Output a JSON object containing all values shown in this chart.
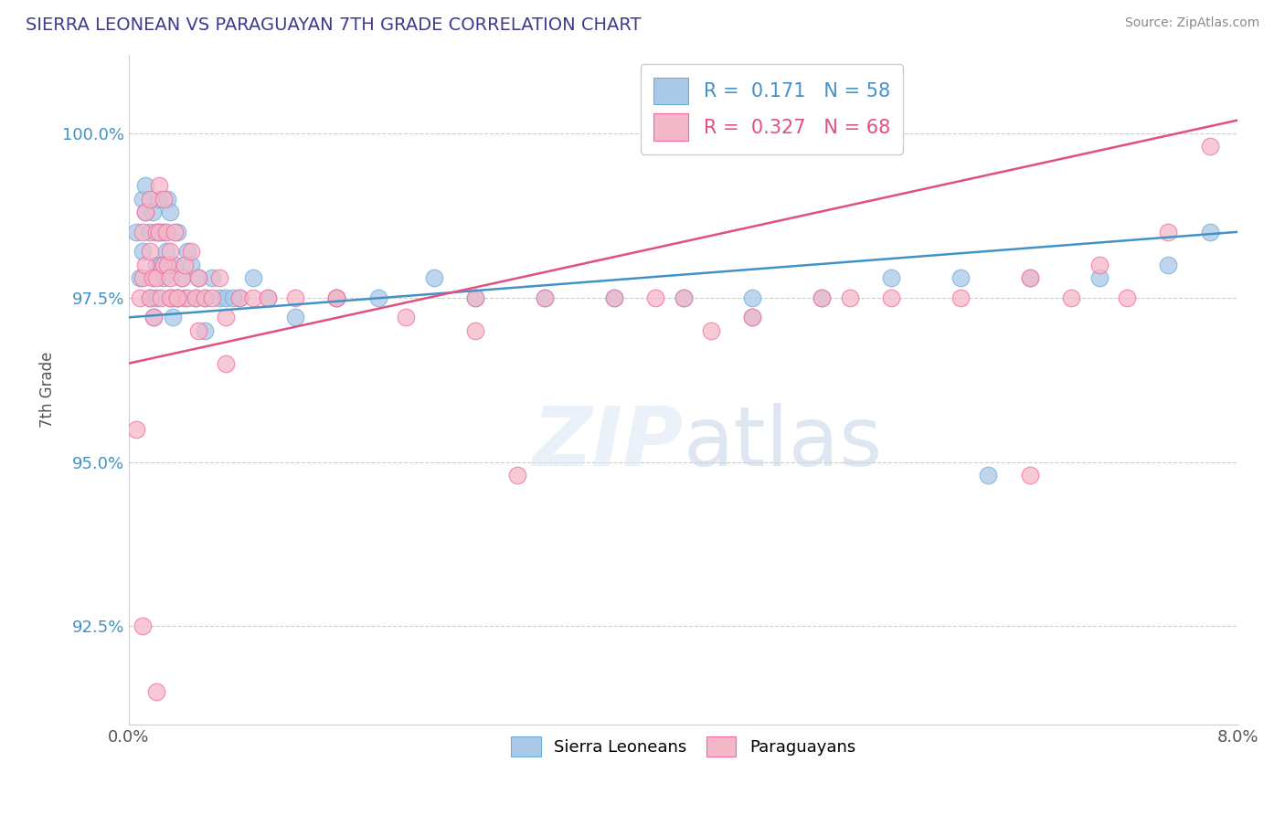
{
  "title": "SIERRA LEONEAN VS PARAGUAYAN 7TH GRADE CORRELATION CHART",
  "source": "Source: ZipAtlas.com",
  "ylabel": "7th Grade",
  "xlim": [
    0.0,
    8.0
  ],
  "ylim": [
    91.0,
    101.2
  ],
  "yticks": [
    92.5,
    95.0,
    97.5,
    100.0
  ],
  "ytick_labels": [
    "92.5%",
    "95.0%",
    "97.5%",
    "100.0%"
  ],
  "blue_color": "#aac8e8",
  "blue_edge": "#6baed6",
  "blue_line": "#4292c6",
  "pink_color": "#f4b8c8",
  "pink_edge": "#f768a1",
  "pink_line": "#e05080",
  "legend_blue_label": "R =  0.171   N = 58",
  "legend_pink_label": "R =  0.327   N = 68",
  "sierra_label": "Sierra Leoneans",
  "para_label": "Paraguayans",
  "blue_x": [
    0.05,
    0.08,
    0.1,
    0.1,
    0.12,
    0.12,
    0.15,
    0.15,
    0.17,
    0.18,
    0.2,
    0.2,
    0.22,
    0.22,
    0.23,
    0.25,
    0.25,
    0.27,
    0.28,
    0.3,
    0.3,
    0.32,
    0.33,
    0.35,
    0.38,
    0.4,
    0.42,
    0.45,
    0.48,
    0.5,
    0.55,
    0.6,
    0.65,
    0.7,
    0.8,
    0.9,
    1.0,
    1.2,
    1.5,
    1.8,
    2.2,
    2.5,
    3.0,
    3.5,
    4.0,
    4.5,
    5.0,
    5.5,
    6.0,
    6.5,
    7.0,
    7.5,
    0.35,
    0.55,
    0.75,
    4.5,
    6.2,
    7.8
  ],
  "blue_y": [
    98.5,
    97.8,
    99.0,
    98.2,
    98.8,
    99.2,
    98.5,
    97.5,
    98.8,
    97.2,
    98.0,
    97.5,
    98.5,
    99.0,
    98.0,
    98.5,
    97.8,
    98.2,
    99.0,
    97.5,
    98.8,
    97.2,
    98.0,
    98.5,
    97.8,
    97.5,
    98.2,
    98.0,
    97.5,
    97.8,
    97.5,
    97.8,
    97.5,
    97.5,
    97.5,
    97.8,
    97.5,
    97.2,
    97.5,
    97.5,
    97.8,
    97.5,
    97.5,
    97.5,
    97.5,
    97.5,
    97.5,
    97.8,
    97.8,
    97.8,
    97.8,
    98.0,
    97.5,
    97.0,
    97.5,
    97.2,
    94.8,
    98.5
  ],
  "pink_x": [
    0.05,
    0.08,
    0.1,
    0.1,
    0.12,
    0.12,
    0.15,
    0.15,
    0.15,
    0.17,
    0.18,
    0.2,
    0.2,
    0.22,
    0.22,
    0.23,
    0.25,
    0.25,
    0.27,
    0.28,
    0.3,
    0.3,
    0.32,
    0.33,
    0.35,
    0.38,
    0.4,
    0.42,
    0.45,
    0.48,
    0.5,
    0.55,
    0.6,
    0.65,
    0.7,
    0.8,
    0.9,
    1.0,
    1.2,
    1.5,
    2.0,
    2.5,
    3.0,
    3.5,
    4.0,
    4.5,
    5.0,
    5.5,
    6.0,
    6.5,
    7.0,
    7.5,
    0.3,
    0.5,
    0.7,
    2.5,
    3.8,
    5.2,
    6.8,
    7.8,
    0.1,
    0.2,
    0.35,
    1.5,
    2.8,
    4.2,
    6.5,
    7.2
  ],
  "pink_y": [
    95.5,
    97.5,
    98.5,
    97.8,
    98.0,
    98.8,
    98.2,
    97.5,
    99.0,
    97.8,
    97.2,
    98.5,
    97.8,
    98.5,
    99.2,
    97.5,
    98.0,
    99.0,
    98.5,
    98.0,
    97.8,
    98.2,
    97.5,
    98.5,
    97.5,
    97.8,
    98.0,
    97.5,
    98.2,
    97.5,
    97.8,
    97.5,
    97.5,
    97.8,
    97.2,
    97.5,
    97.5,
    97.5,
    97.5,
    97.5,
    97.2,
    97.0,
    97.5,
    97.5,
    97.5,
    97.2,
    97.5,
    97.5,
    97.5,
    97.8,
    98.0,
    98.5,
    97.5,
    97.0,
    96.5,
    97.5,
    97.5,
    97.5,
    97.5,
    99.8,
    92.5,
    91.5,
    97.5,
    97.5,
    94.8,
    97.0,
    94.8,
    97.5
  ]
}
